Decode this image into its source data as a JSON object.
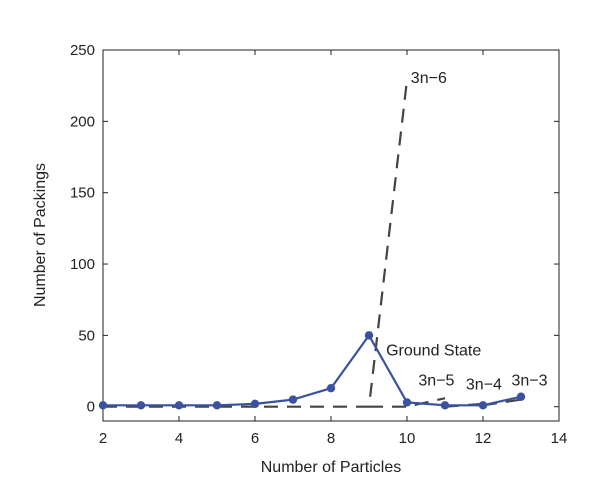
{
  "chart_data": {
    "type": "line",
    "xlabel": "Number of Particles",
    "ylabel": "Number of Packings",
    "xlim": [
      2,
      14
    ],
    "ylim": [
      -10,
      250
    ],
    "xticks": [
      2,
      4,
      6,
      8,
      10,
      12,
      14
    ],
    "yticks": [
      0,
      50,
      100,
      150,
      200,
      250
    ],
    "grid": false,
    "series": [
      {
        "name": "Ground State",
        "style": "solid-markers",
        "color": "#3a52a0",
        "x": [
          2,
          3,
          4,
          5,
          6,
          7,
          8,
          9,
          10,
          11,
          12,
          13
        ],
        "y": [
          1,
          1,
          1,
          1,
          2,
          5,
          13,
          50,
          3,
          1,
          1,
          7
        ]
      },
      {
        "name": "3n−6",
        "style": "dashed",
        "color": "#444444",
        "x": [
          2,
          3,
          4,
          5,
          6,
          7,
          8,
          9,
          10
        ],
        "y": [
          0,
          0,
          0,
          0,
          0,
          0,
          0,
          0,
          229
        ]
      },
      {
        "name": "3n−5",
        "style": "dashed",
        "color": "#444444",
        "x": [
          9,
          10,
          11
        ],
        "y": [
          0,
          0,
          6
        ]
      },
      {
        "name": "3n−4",
        "style": "dashed",
        "color": "#444444",
        "x": [
          11,
          12
        ],
        "y": [
          0,
          2
        ]
      },
      {
        "name": "3n−3",
        "style": "dashed",
        "color": "#444444",
        "x": [
          12,
          13
        ],
        "y": [
          1,
          5
        ]
      }
    ],
    "annotations": [
      {
        "text": "3n−6",
        "x": 10.1,
        "y": 227,
        "color": "#222222"
      },
      {
        "text": "Ground State",
        "x": 9.45,
        "y": 36,
        "color": "#3a52a0"
      },
      {
        "text": "3n−5",
        "x": 10.3,
        "y": 15,
        "color": "#222222"
      },
      {
        "text": "3n−4",
        "x": 11.55,
        "y": 12,
        "color": "#222222"
      },
      {
        "text": "3n−3",
        "x": 12.75,
        "y": 15,
        "color": "#222222"
      }
    ]
  }
}
